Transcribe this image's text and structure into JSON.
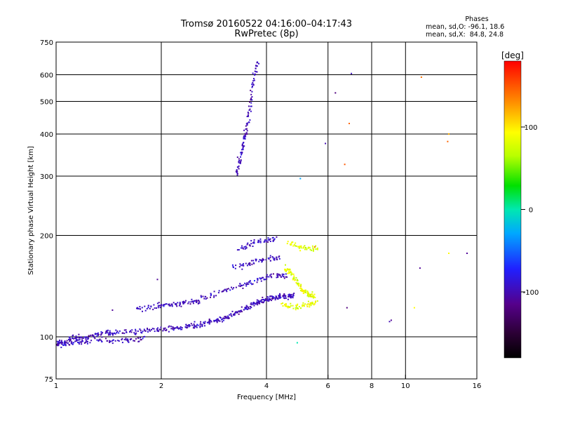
{
  "header": {
    "title": "Tromsø 20160522 04:16:00–04:17:43",
    "subtitle": "RwPretec (8p)"
  },
  "phase_info": {
    "title": "Phases",
    "line_o": "mean, sd,O: -96.1, 18.6",
    "line_x": "mean, sd,X:  84.8, 24.8"
  },
  "chart_data": {
    "type": "scatter",
    "title": "Tromsø 20160522 04:16:00–04:17:43",
    "subtitle": "RwPretec (8p)",
    "xlabel": "Frequency [MHz]",
    "ylabel": "Stationary phase Virtual Height [km]",
    "x_scale": "log",
    "y_scale": "log",
    "xlim": [
      1,
      16
    ],
    "ylim": [
      75,
      750
    ],
    "x_ticks": [
      1,
      2,
      4,
      6,
      8,
      10,
      16
    ],
    "y_ticks": [
      75,
      100,
      200,
      300,
      400,
      500,
      600,
      750
    ],
    "x_gridlines": [
      2,
      4,
      6,
      8,
      10
    ],
    "y_gridlines": [
      100,
      200,
      300,
      400,
      500,
      600
    ],
    "grid": true,
    "colorbar": {
      "label": "[deg]",
      "min": -180,
      "max": 180,
      "ticks": [
        100,
        0,
        -100
      ],
      "colormap": "rainbow (black-purple-blue-cyan-green-yellow-orange-red)"
    },
    "series": [
      {
        "name": "O",
        "phase_mean": -96.1,
        "phase_sd": 18.6,
        "traces": [
          {
            "x": [
              1.0,
              1.03,
              1.06,
              1.1,
              1.15,
              1.2,
              1.25,
              1.3,
              1.35,
              1.4,
              1.45,
              1.5,
              1.6,
              1.7,
              1.8,
              1.9,
              2.0,
              2.1,
              2.2,
              2.3,
              2.4,
              2.5,
              2.6,
              2.7,
              2.8,
              2.9,
              3.0,
              3.1,
              3.2,
              3.3,
              3.4,
              3.5,
              3.6,
              3.7,
              3.8,
              3.9,
              4.0,
              4.1,
              4.2,
              4.3,
              4.4,
              4.5,
              4.6,
              4.7,
              4.8
            ],
            "y": [
              96,
              96,
              97,
              99,
              99,
              99,
              100,
              101,
              102,
              103,
              103,
              103,
              103,
              103,
              104,
              105,
              105,
              106,
              106,
              107,
              108,
              108,
              109,
              110,
              111,
              112,
              113,
              114,
              116,
              118,
              120,
              122,
              124,
              126,
              127,
              128,
              129,
              130,
              130,
              131,
              131,
              132,
              132,
              132,
              132
            ]
          },
          {
            "x": [
              1.0,
              1.05,
              1.1,
              1.15,
              1.2,
              1.3,
              1.4,
              1.5,
              1.6,
              1.7,
              1.8
            ],
            "y": [
              95,
              95,
              96,
              97,
              96,
              97,
              97,
              97,
              98,
              98,
              99
            ]
          },
          {
            "x": [
              1.7,
              1.8,
              1.9,
              2.0,
              2.1,
              2.2,
              2.3,
              2.4,
              2.5,
              2.6
            ],
            "y": [
              121,
              122,
              123,
              124,
              125,
              125,
              126,
              126,
              127,
              127
            ]
          },
          {
            "x": [
              2.6,
              2.8,
              3.0,
              3.2,
              3.4,
              3.6,
              3.8,
              4.0,
              4.2,
              4.4,
              4.6
            ],
            "y": [
              130,
              133,
              136,
              139,
              142,
              145,
              148,
              150,
              151,
              152,
              152
            ]
          },
          {
            "x": [
              3.2,
              3.4,
              3.6,
              3.8,
              4.0,
              4.2,
              4.4
            ],
            "y": [
              160,
              163,
              166,
              168,
              170,
              171,
              171
            ]
          },
          {
            "x": [
              3.3,
              3.5,
              3.7,
              3.9,
              4.1,
              4.3
            ],
            "y": [
              182,
              186,
              190,
              193,
              195,
              196
            ]
          },
          {
            "x": [
              3.28,
              3.32,
              3.36,
              3.4,
              3.44,
              3.48,
              3.52,
              3.56,
              3.6,
              3.64,
              3.68,
              3.72,
              3.76
            ],
            "y": [
              305,
              320,
              335,
              355,
              375,
              395,
              420,
              450,
              490,
              540,
              590,
              630,
              650
            ]
          }
        ]
      },
      {
        "name": "X",
        "phase_mean": 84.8,
        "phase_sd": 24.8,
        "traces": [
          {
            "x": [
              4.5,
              4.6,
              4.7,
              4.8,
              4.9,
              5.0,
              5.1,
              5.2,
              5.3,
              5.4,
              5.5
            ],
            "y": [
              160,
              158,
              155,
              150,
              145,
              140,
              137,
              135,
              133,
              132,
              132
            ]
          },
          {
            "x": [
              4.4,
              4.6,
              4.8,
              5.0,
              5.2,
              5.4,
              5.6
            ],
            "y": [
              125,
              124,
              123,
              123,
              124,
              126,
              128
            ]
          },
          {
            "x": [
              4.6,
              4.8,
              5.0,
              5.2,
              5.4,
              5.6
            ],
            "y": [
              190,
              188,
              185,
              183,
              182,
              182
            ]
          }
        ]
      }
    ],
    "isolated_points": [
      {
        "x": 1.45,
        "y": 120,
        "phase": -110
      },
      {
        "x": 1.95,
        "y": 148,
        "phase": -110
      },
      {
        "x": 4.9,
        "y": 96,
        "phase": 0
      },
      {
        "x": 5.0,
        "y": 295,
        "phase": -30
      },
      {
        "x": 5.5,
        "y": 185,
        "phase": 140
      },
      {
        "x": 5.9,
        "y": 375,
        "phase": -100
      },
      {
        "x": 6.3,
        "y": 530,
        "phase": -120
      },
      {
        "x": 6.7,
        "y": 325,
        "phase": 150
      },
      {
        "x": 6.9,
        "y": 430,
        "phase": 145
      },
      {
        "x": 7.0,
        "y": 605,
        "phase": -95
      },
      {
        "x": 6.8,
        "y": 122,
        "phase": -120
      },
      {
        "x": 9.0,
        "y": 111,
        "phase": -100
      },
      {
        "x": 9.1,
        "y": 112,
        "phase": -110
      },
      {
        "x": 10.6,
        "y": 122,
        "phase": 95
      },
      {
        "x": 11.0,
        "y": 160,
        "phase": -110
      },
      {
        "x": 11.1,
        "y": 590,
        "phase": 140
      },
      {
        "x": 13.2,
        "y": 380,
        "phase": 145
      },
      {
        "x": 13.3,
        "y": 400,
        "phase": 120
      },
      {
        "x": 13.3,
        "y": 177,
        "phase": 95
      },
      {
        "x": 15.0,
        "y": 177,
        "phase": -110
      }
    ]
  }
}
